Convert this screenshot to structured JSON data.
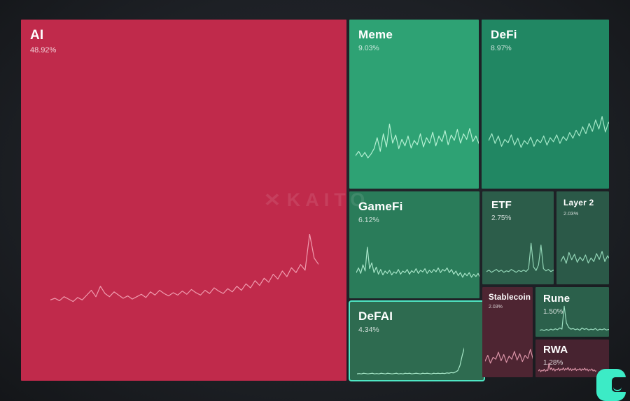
{
  "app": {
    "watermark_text": "KAITO",
    "watermark_icon": "x-logo-icon"
  },
  "colors": {
    "highlight_border": "#4fe6c4",
    "logo_teal": "#3cebc6",
    "background": "#1d2025"
  },
  "chart_data": {
    "type": "treemap",
    "title": "Crypto narrative mindshare treemap with sparklines",
    "legend_position": "none",
    "blocks": [
      {
        "id": "ai",
        "name": "AI",
        "share_label": "48.92%",
        "value": 48.92,
        "color": "#c02a4b",
        "spark_color": "#ef9bae",
        "highlight": false,
        "trend": [
          0.18,
          0.2,
          0.17,
          0.22,
          0.19,
          0.16,
          0.21,
          0.18,
          0.24,
          0.3,
          0.22,
          0.35,
          0.26,
          0.22,
          0.28,
          0.24,
          0.2,
          0.23,
          0.19,
          0.22,
          0.25,
          0.21,
          0.28,
          0.24,
          0.3,
          0.26,
          0.23,
          0.27,
          0.24,
          0.29,
          0.25,
          0.31,
          0.27,
          0.24,
          0.3,
          0.26,
          0.33,
          0.29,
          0.26,
          0.32,
          0.28,
          0.35,
          0.3,
          0.38,
          0.33,
          0.42,
          0.36,
          0.45,
          0.4,
          0.5,
          0.44,
          0.54,
          0.47,
          0.58,
          0.52,
          0.62,
          0.55,
          1.0,
          0.7,
          0.62
        ]
      },
      {
        "id": "meme",
        "name": "Meme",
        "share_label": "9.03%",
        "value": 9.03,
        "color": "#2ea274",
        "spark_color": "#b5f0d3",
        "highlight": false,
        "trend": [
          0.22,
          0.3,
          0.2,
          0.28,
          0.18,
          0.25,
          0.35,
          0.55,
          0.3,
          0.62,
          0.38,
          0.8,
          0.45,
          0.6,
          0.35,
          0.52,
          0.4,
          0.58,
          0.36,
          0.5,
          0.42,
          0.62,
          0.38,
          0.55,
          0.45,
          0.65,
          0.4,
          0.58,
          0.48,
          0.68,
          0.42,
          0.6,
          0.5,
          0.7,
          0.45,
          0.62,
          0.52,
          0.72,
          0.48,
          0.58,
          0.44,
          0.66,
          0.5,
          0.95,
          0.55,
          0.75,
          0.6,
          0.82,
          0.52,
          0.7,
          0.58,
          0.76,
          0.48,
          0.62,
          0.4,
          0.52,
          0.35,
          0.44,
          0.3,
          0.25
        ]
      },
      {
        "id": "defi",
        "name": "DeFi",
        "share_label": "8.97%",
        "value": 8.97,
        "color": "#218763",
        "spark_color": "#a3e7c7",
        "highlight": false,
        "trend": [
          0.4,
          0.52,
          0.35,
          0.48,
          0.3,
          0.42,
          0.36,
          0.5,
          0.32,
          0.44,
          0.28,
          0.4,
          0.34,
          0.46,
          0.3,
          0.42,
          0.36,
          0.48,
          0.32,
          0.45,
          0.38,
          0.5,
          0.35,
          0.47,
          0.4,
          0.54,
          0.44,
          0.58,
          0.48,
          0.64,
          0.52,
          0.7,
          0.56,
          0.76,
          0.6,
          0.82,
          0.55,
          0.72,
          0.6,
          0.78,
          0.52,
          0.68,
          0.46,
          0.62,
          0.5,
          0.88,
          0.55,
          0.7,
          0.45,
          0.6,
          0.38,
          0.52,
          0.32,
          0.46,
          0.28,
          0.4,
          0.34,
          0.45,
          0.3,
          0.35
        ]
      },
      {
        "id": "gamefi",
        "name": "GameFi",
        "share_label": "6.12%",
        "value": 6.12,
        "color": "#2a7c5a",
        "spark_color": "#a6e4c7",
        "highlight": false,
        "trend": [
          0.3,
          0.42,
          0.28,
          0.5,
          0.34,
          0.95,
          0.4,
          0.55,
          0.3,
          0.44,
          0.26,
          0.38,
          0.24,
          0.34,
          0.28,
          0.36,
          0.24,
          0.32,
          0.28,
          0.38,
          0.26,
          0.34,
          0.3,
          0.38,
          0.26,
          0.35,
          0.3,
          0.4,
          0.28,
          0.36,
          0.32,
          0.4,
          0.28,
          0.36,
          0.3,
          0.38,
          0.32,
          0.42,
          0.3,
          0.38,
          0.34,
          0.42,
          0.3,
          0.38,
          0.26,
          0.34,
          0.22,
          0.3,
          0.18,
          0.28,
          0.22,
          0.3,
          0.18,
          0.26,
          0.2,
          0.28,
          0.16,
          0.24,
          0.18,
          0.14
        ]
      },
      {
        "id": "defai",
        "name": "DeFAI",
        "share_label": "4.34%",
        "value": 4.34,
        "color": "#2e6b50",
        "spark_color": "#a9e9ca",
        "highlight": true,
        "trend": [
          0.04,
          0.05,
          0.04,
          0.06,
          0.05,
          0.04,
          0.05,
          0.06,
          0.04,
          0.05,
          0.04,
          0.06,
          0.05,
          0.04,
          0.06,
          0.05,
          0.04,
          0.05,
          0.06,
          0.04,
          0.05,
          0.04,
          0.06,
          0.05,
          0.06,
          0.04,
          0.05,
          0.06,
          0.05,
          0.04,
          0.06,
          0.05,
          0.06,
          0.05,
          0.04,
          0.06,
          0.05,
          0.06,
          0.05,
          0.06,
          0.05,
          0.07,
          0.06,
          0.08,
          0.07,
          0.1,
          0.14,
          0.3,
          0.6,
          0.85
        ]
      },
      {
        "id": "etf",
        "name": "ETF",
        "share_label": "2.75%",
        "value": 2.75,
        "color": "#2c5d4a",
        "spark_color": "#93d6b7",
        "highlight": false,
        "trend": [
          0.12,
          0.16,
          0.1,
          0.14,
          0.18,
          0.12,
          0.16,
          0.1,
          0.14,
          0.12,
          0.18,
          0.14,
          0.1,
          0.15,
          0.12,
          0.16,
          0.12,
          0.2,
          0.9,
          0.25,
          0.15,
          0.3,
          0.85,
          0.2,
          0.14,
          0.18,
          0.12,
          0.16,
          0.1,
          0.14,
          0.12,
          0.16,
          0.1,
          0.13,
          0.11,
          0.14,
          0.1,
          0.12,
          0.14,
          0.1,
          0.12,
          0.09,
          0.12,
          0.1,
          0.13,
          0.09,
          0.11,
          0.1,
          0.12,
          0.08
        ]
      },
      {
        "id": "layer2",
        "name": "Layer 2",
        "share_label": "2.03%",
        "value": 2.03,
        "color": "#2b5948",
        "spark_color": "#93d6b7",
        "highlight": false,
        "trend": [
          0.3,
          0.45,
          0.25,
          0.55,
          0.35,
          0.5,
          0.28,
          0.42,
          0.32,
          0.48,
          0.26,
          0.4,
          0.3,
          0.52,
          0.36,
          0.58,
          0.3,
          0.46,
          0.34,
          0.55,
          0.4,
          0.65,
          0.35,
          0.9,
          0.42,
          0.6,
          0.38,
          0.68,
          0.44,
          0.58,
          0.36,
          0.5,
          0.3,
          0.44,
          0.26,
          0.38,
          0.22,
          0.34,
          0.26,
          0.3,
          0.2,
          0.28,
          0.16,
          0.22,
          0.18
        ]
      },
      {
        "id": "stablecoin",
        "name": "Stablecoin",
        "share_label": "2.03%",
        "value": 2.03,
        "color": "#4e2532",
        "spark_color": "#d993a6",
        "highlight": false,
        "trend": [
          0.25,
          0.4,
          0.2,
          0.35,
          0.3,
          0.48,
          0.26,
          0.42,
          0.22,
          0.38,
          0.3,
          0.5,
          0.28,
          0.44,
          0.24,
          0.4,
          0.32,
          0.55,
          0.3,
          0.46,
          0.26,
          0.42,
          0.34,
          0.6,
          0.32,
          0.48,
          0.28,
          0.44,
          0.36,
          0.58,
          0.3,
          0.46,
          0.26,
          0.4,
          0.32,
          0.52,
          0.28,
          0.42,
          0.24,
          0.38,
          0.3,
          0.46,
          0.26,
          0.38,
          0.22,
          0.34,
          0.28,
          0.4,
          0.24,
          0.3
        ]
      },
      {
        "id": "rune",
        "name": "Rune",
        "share_label": "1.50%",
        "value": 1.5,
        "color": "#2b604b",
        "spark_color": "#9cdec1",
        "highlight": false,
        "trend": [
          0.1,
          0.12,
          0.09,
          0.13,
          0.1,
          0.14,
          0.11,
          0.15,
          0.12,
          0.18,
          0.14,
          0.92,
          0.35,
          0.2,
          0.14,
          0.16,
          0.12,
          0.15,
          0.1,
          0.18,
          0.13,
          0.16,
          0.11,
          0.14,
          0.12,
          0.16,
          0.1,
          0.14,
          0.12,
          0.15,
          0.11,
          0.13,
          0.1,
          0.14,
          0.11,
          0.15,
          0.12,
          0.14,
          0.1,
          0.13,
          0.11,
          0.14,
          0.1,
          0.12,
          0.11
        ]
      },
      {
        "id": "rwa",
        "name": "RWA",
        "share_label": "1.28%",
        "value": 1.28,
        "color": "#472330",
        "spark_color": "#d48fa2",
        "highlight": false,
        "trend": [
          0.2,
          0.28,
          0.16,
          0.24,
          0.2,
          0.3,
          0.18,
          0.26,
          0.22,
          0.65,
          0.28,
          0.38,
          0.24,
          0.34,
          0.2,
          0.3,
          0.26,
          0.36,
          0.22,
          0.32,
          0.26,
          0.38,
          0.24,
          0.34,
          0.28,
          0.4,
          0.24,
          0.34,
          0.22,
          0.32,
          0.26,
          0.36,
          0.22,
          0.3,
          0.26,
          0.34,
          0.22,
          0.32,
          0.26,
          0.36,
          0.24,
          0.32,
          0.2,
          0.28,
          0.24,
          0.32,
          0.2,
          0.26,
          0.18,
          0.22
        ]
      }
    ]
  }
}
